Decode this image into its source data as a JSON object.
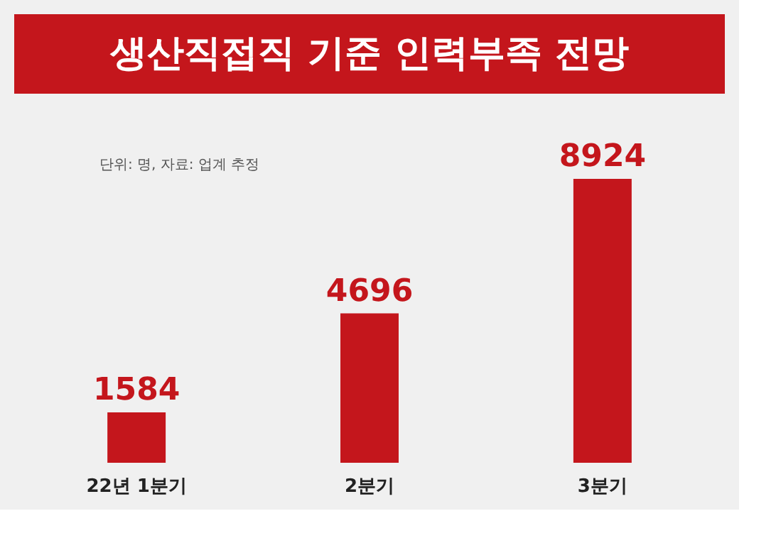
{
  "chart_data": {
    "type": "bar",
    "title": "생산직접직 기준 인력부족 전망",
    "annotations": [
      "단위: 명, 자료: 업계 추정"
    ],
    "categories": [
      "22년 1분기",
      "2분기",
      "3분기"
    ],
    "values": [
      1584,
      4696,
      8924
    ],
    "color": "#c4161c",
    "data_labels": true
  }
}
